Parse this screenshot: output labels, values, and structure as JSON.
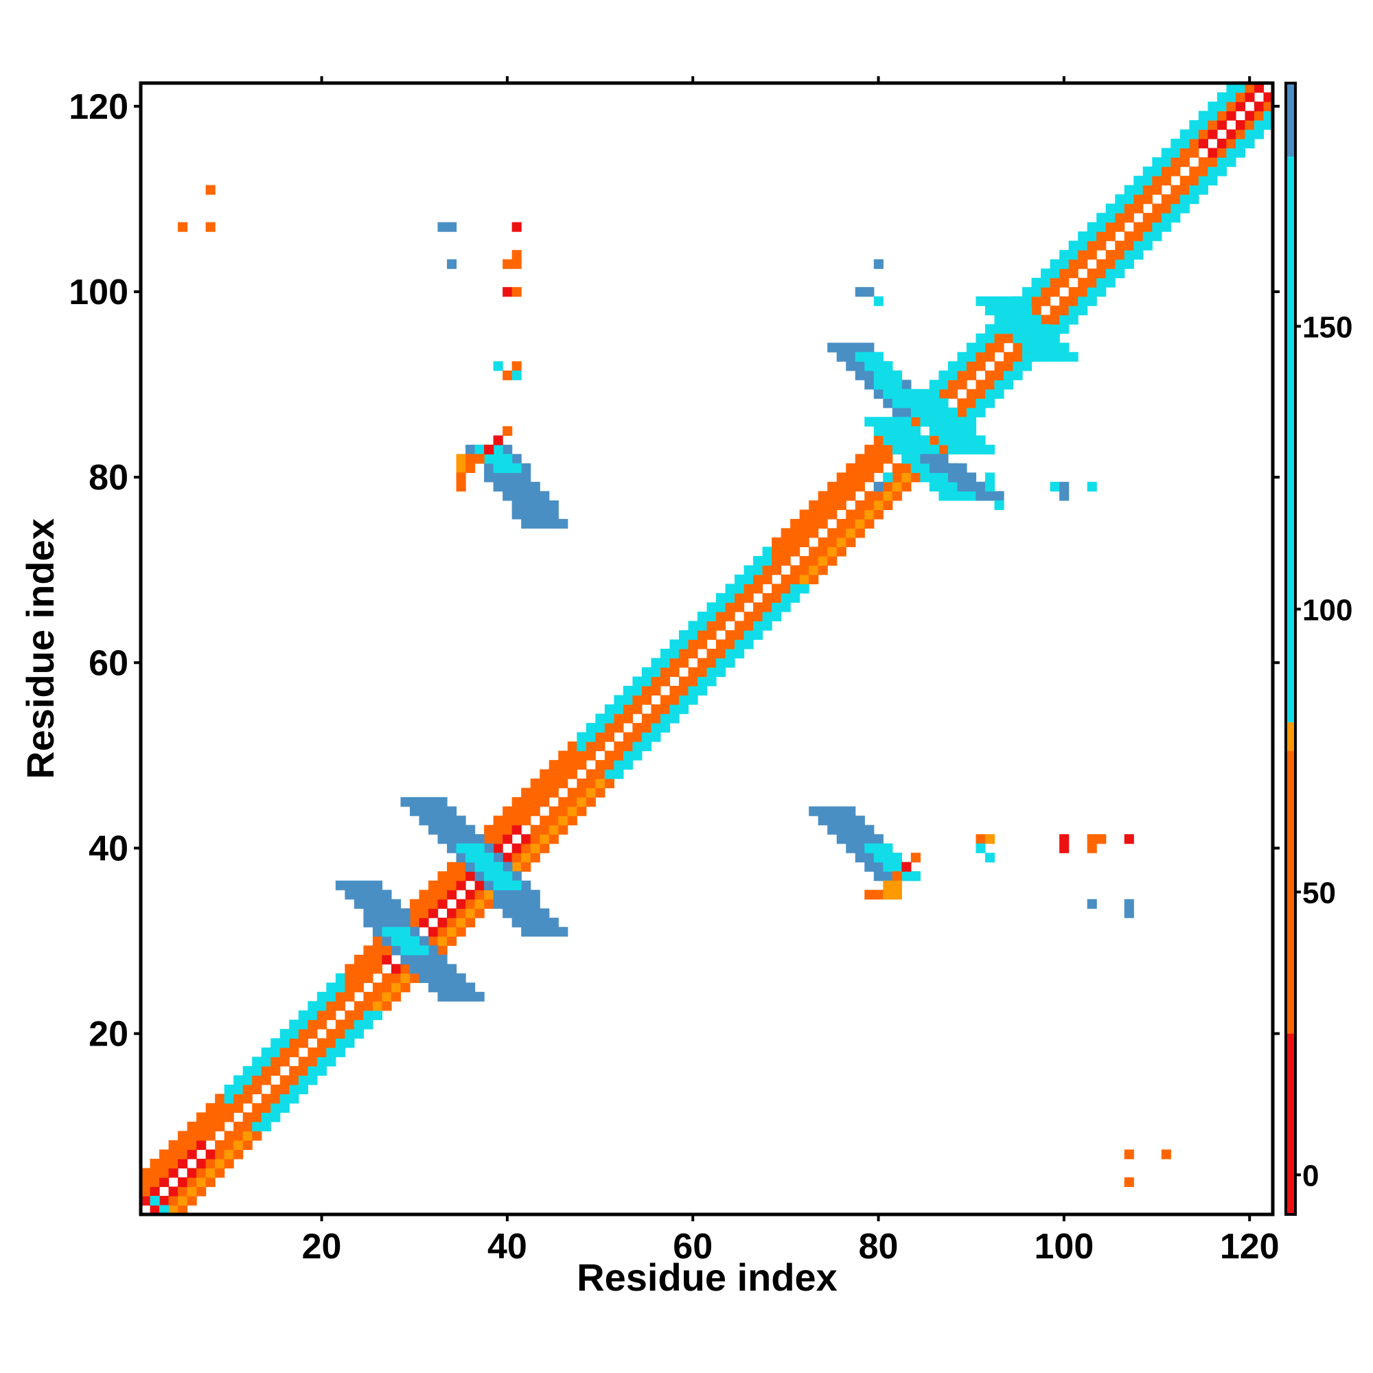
{
  "chart_data": {
    "type": "heatmap",
    "title": "",
    "xlabel": "Residue index",
    "ylabel": "Residue index",
    "xlim": [
      1,
      122
    ],
    "ylim": [
      1,
      122
    ],
    "x_ticks": [
      20,
      40,
      60,
      80,
      100,
      120
    ],
    "y_ticks": [
      20,
      40,
      60,
      80,
      100,
      120
    ],
    "colorbar": {
      "ticks": [
        0,
        50,
        100,
        150
      ],
      "range": [
        -7,
        193
      ],
      "bands": [
        {
          "from": -7,
          "to": 25,
          "color": "#ee1111"
        },
        {
          "from": 25,
          "to": 75,
          "color": "#ff6600"
        },
        {
          "from": 75,
          "to": 80,
          "color": "#ff9900"
        },
        {
          "from": 80,
          "to": 180,
          "color": "#11dde8"
        },
        {
          "from": 180,
          "to": 193,
          "color": "#4a8fc4"
        }
      ]
    },
    "colors": {
      "red": "#ee1111",
      "orange": "#ff6600",
      "amber": "#ff9900",
      "cyan": "#11dde8",
      "blue": "#4a8fc4"
    },
    "cells": [
      [
        8,
        111,
        "orange"
      ],
      [
        5,
        107,
        "orange"
      ],
      [
        8,
        107,
        "orange"
      ],
      [
        33,
        107,
        "blue"
      ],
      [
        34,
        107,
        "blue"
      ],
      [
        34,
        103,
        "blue"
      ],
      [
        41,
        107,
        "red"
      ],
      [
        41,
        104,
        "orange"
      ],
      [
        40,
        103,
        "orange"
      ],
      [
        41,
        103,
        "orange"
      ],
      [
        40,
        100,
        "red"
      ],
      [
        41,
        100,
        "orange"
      ],
      [
        39,
        92,
        "cyan"
      ],
      [
        40,
        91,
        "orange"
      ],
      [
        41,
        92,
        "orange"
      ],
      [
        41,
        91,
        "cyan"
      ],
      [
        80,
        103,
        "blue"
      ],
      [
        78,
        100,
        "blue"
      ],
      [
        79,
        100,
        "blue"
      ],
      [
        80,
        99,
        "cyan"
      ],
      [
        80,
        79,
        "blue"
      ],
      [
        81,
        80,
        "cyan"
      ],
      [
        92,
        80,
        "cyan"
      ],
      [
        92,
        79,
        "cyan"
      ],
      [
        93,
        77,
        "cyan"
      ],
      [
        99,
        79,
        "cyan"
      ],
      [
        100,
        79,
        "blue"
      ],
      [
        100,
        78,
        "blue"
      ],
      [
        103,
        79,
        "cyan"
      ],
      [
        91,
        41,
        "orange"
      ],
      [
        92,
        41,
        "amber"
      ],
      [
        91,
        40,
        "cyan"
      ],
      [
        92,
        39,
        "cyan"
      ],
      [
        100,
        41,
        "red"
      ],
      [
        100,
        40,
        "red"
      ],
      [
        103,
        41,
        "orange"
      ],
      [
        104,
        41,
        "orange"
      ],
      [
        103,
        40,
        "orange"
      ],
      [
        107,
        41,
        "red"
      ],
      [
        103,
        34,
        "blue"
      ],
      [
        107,
        34,
        "blue"
      ],
      [
        107,
        33,
        "blue"
      ],
      [
        107,
        7,
        "orange"
      ],
      [
        111,
        7,
        "orange"
      ],
      [
        107,
        4,
        "orange"
      ],
      [
        40,
        85,
        "orange"
      ],
      [
        39,
        84,
        "red"
      ],
      [
        38,
        83,
        "red"
      ],
      [
        35,
        82,
        "amber"
      ],
      [
        36,
        82,
        "orange"
      ],
      [
        37,
        82,
        "orange"
      ],
      [
        35,
        81,
        "amber"
      ],
      [
        36,
        81,
        "orange"
      ],
      [
        35,
        80,
        "orange"
      ],
      [
        35,
        79,
        "orange"
      ],
      [
        84,
        39,
        "orange"
      ],
      [
        83,
        38,
        "red"
      ],
      [
        82,
        37,
        "orange"
      ],
      [
        81,
        36,
        "amber"
      ],
      [
        82,
        36,
        "amber"
      ],
      [
        79,
        35,
        "orange"
      ],
      [
        80,
        35,
        "orange"
      ],
      [
        81,
        35,
        "amber"
      ],
      [
        82,
        35,
        "amber"
      ],
      [
        2,
        2,
        "cyan"
      ],
      [
        3,
        1,
        "cyan"
      ]
    ],
    "regions": [
      {
        "type": "band",
        "from": [
          38,
          83
        ],
        "to": [
          44,
          75
        ],
        "half_width": 2,
        "color": "blue"
      },
      {
        "type": "band",
        "from": [
          38,
          83
        ],
        "to": [
          40,
          81
        ],
        "half_width": 1,
        "color": "cyan"
      },
      {
        "type": "band",
        "from": [
          75,
          44
        ],
        "to": [
          82,
          37
        ],
        "half_width": 2,
        "color": "blue"
      },
      {
        "type": "band",
        "from": [
          80,
          40
        ],
        "to": [
          83,
          37
        ],
        "half_width": 1,
        "color": "cyan"
      },
      {
        "type": "band",
        "from": [
          24,
          36
        ],
        "to": [
          30,
          29
        ],
        "half_width": 2,
        "color": "blue"
      },
      {
        "type": "band",
        "from": [
          30,
          29
        ],
        "to": [
          35,
          24
        ],
        "half_width": 2,
        "color": "blue"
      },
      {
        "type": "band",
        "from": [
          31,
          45
        ],
        "to": [
          38,
          38
        ],
        "half_width": 2,
        "color": "blue"
      },
      {
        "type": "band",
        "from": [
          38,
          38
        ],
        "to": [
          44,
          31
        ],
        "half_width": 2,
        "color": "blue"
      },
      {
        "type": "band",
        "from": [
          36,
          40
        ],
        "to": [
          40,
          36
        ],
        "half_width": 1,
        "color": "cyan"
      },
      {
        "type": "band",
        "from": [
          28,
          31
        ],
        "to": [
          30,
          29
        ],
        "half_width": 1,
        "color": "cyan"
      },
      {
        "type": "band",
        "from": [
          77,
          94
        ],
        "to": [
          84,
          87
        ],
        "half_width": 2,
        "color": "blue"
      },
      {
        "type": "band",
        "from": [
          79,
          93
        ],
        "to": [
          83,
          88
        ],
        "half_width": 1,
        "color": "cyan"
      },
      {
        "type": "band",
        "from": [
          81,
          86
        ],
        "to": [
          89,
          78
        ],
        "half_width": 2,
        "color": "cyan"
      },
      {
        "type": "band",
        "from": [
          86,
          82
        ],
        "to": [
          92,
          78
        ],
        "half_width": 1,
        "color": "blue"
      },
      {
        "type": "band",
        "from": [
          84,
          89
        ],
        "to": [
          90,
          83
        ],
        "half_width": 2,
        "color": "cyan"
      },
      {
        "type": "band",
        "from": [
          93,
          99
        ],
        "to": [
          99,
          93
        ],
        "half_width": 2,
        "color": "cyan"
      }
    ]
  }
}
